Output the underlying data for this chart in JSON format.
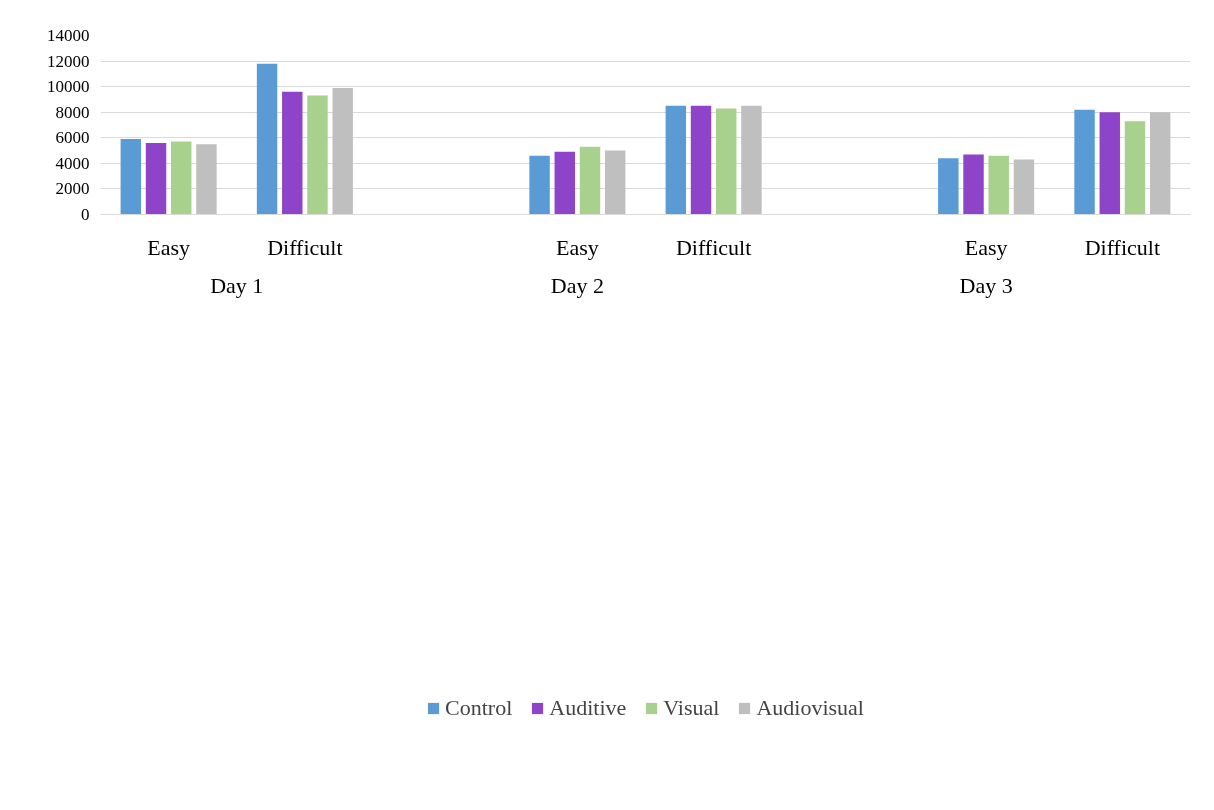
{
  "chart_data": {
    "type": "bar",
    "categories": [
      "Easy",
      "Difficult",
      null,
      "Easy",
      "Difficult",
      null,
      "Easy",
      "Difficult"
    ],
    "series": [
      {
        "name": "Control",
        "color": "#5b9bd5",
        "values": [
          5900,
          11800,
          null,
          4600,
          8500,
          null,
          4400,
          8200
        ]
      },
      {
        "name": "Auditive",
        "color": "#8e44c9",
        "values": [
          5600,
          9600,
          null,
          4900,
          8500,
          null,
          4700,
          8000
        ]
      },
      {
        "name": "Visual",
        "color": "#a9d18e",
        "values": [
          5700,
          9300,
          null,
          5300,
          8300,
          null,
          4600,
          7300
        ]
      },
      {
        "name": "Audiovisual",
        "color": "#bfbfbf",
        "values": [
          5500,
          9900,
          null,
          5000,
          8500,
          null,
          4300,
          8000
        ]
      }
    ],
    "annotations": [
      "Day 1",
      "Day 2",
      "Day 3"
    ],
    "ylim": [
      0,
      14000
    ],
    "yticks": [
      0,
      2000,
      4000,
      6000,
      8000,
      10000,
      12000,
      14000
    ],
    "grid": "y",
    "legend": "bottom"
  }
}
